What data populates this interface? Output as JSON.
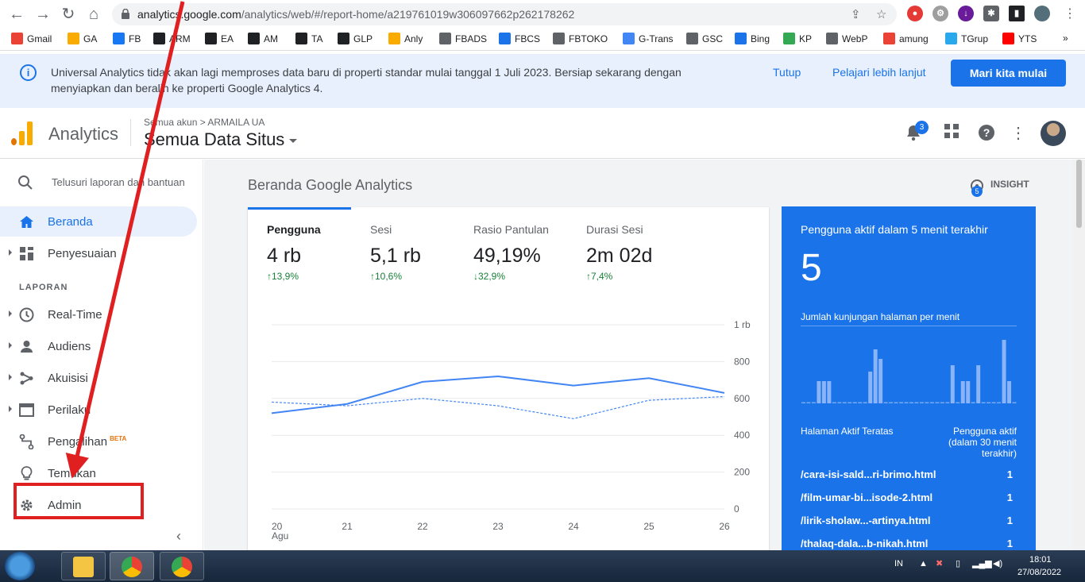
{
  "browser": {
    "url_host": "analytics.google.com",
    "url_path": "/analytics/web/#/report-home/a219761019w306097662p262178262",
    "bookmarks": [
      {
        "label": "Gmail",
        "color": "#ea4335"
      },
      {
        "label": "GA",
        "color": "#f9ab00"
      },
      {
        "label": "FB",
        "color": "#1877f2"
      },
      {
        "label": "ARM",
        "color": "#202124"
      },
      {
        "label": "EA",
        "color": "#202124"
      },
      {
        "label": "AM",
        "color": "#202124"
      },
      {
        "label": "TA",
        "color": "#202124"
      },
      {
        "label": "GLP",
        "color": "#202124"
      },
      {
        "label": "Anly",
        "color": "#f9ab00"
      },
      {
        "label": "FBADS",
        "color": "#5f6368"
      },
      {
        "label": "FBCS",
        "color": "#1a73e8"
      },
      {
        "label": "FBTOKO",
        "color": "#5f6368"
      },
      {
        "label": "G-Trans",
        "color": "#4285f4"
      },
      {
        "label": "GSC",
        "color": "#5f6368"
      },
      {
        "label": "Bing",
        "color": "#1a73e8"
      },
      {
        "label": "KP",
        "color": "#34a853"
      },
      {
        "label": "WebP",
        "color": "#5f6368"
      },
      {
        "label": "amung",
        "color": "#ea4335"
      },
      {
        "label": "TGrup",
        "color": "#29a9eb"
      },
      {
        "label": "YTS",
        "color": "#ff0000"
      }
    ],
    "more": "»"
  },
  "banner": {
    "text": "Universal Analytics tidak akan lagi memproses data baru di properti standar mulai tanggal 1 Juli 2023. Bersiap sekarang dengan menyiapkan dan beralih ke properti Google Analytics 4.",
    "close_label": "Tutup",
    "learn_label": "Pelajari lebih lanjut",
    "start_label": "Mari kita mulai"
  },
  "header": {
    "app_name": "Analytics",
    "crumb": "Semua akun > ARMAILA UA",
    "view": "Semua Data Situs",
    "notifications": "3"
  },
  "sidebar": {
    "search_placeholder": "Telusuri laporan dan bantuan",
    "home": "Beranda",
    "customization": "Penyesuaian",
    "section": "LAPORAN",
    "realtime": "Real-Time",
    "audience": "Audiens",
    "acquisition": "Akuisisi",
    "behavior": "Perilaku",
    "conversions": "Pengalihan",
    "conversions_badge": "BETA",
    "discover": "Temukan",
    "admin": "Admin"
  },
  "main": {
    "title": "Beranda Google Analytics",
    "insight_label": "INSIGHT",
    "insight_count": "5",
    "metrics": [
      {
        "label": "Pengguna",
        "value": "4 rb",
        "delta": "13,9%",
        "dir": "up"
      },
      {
        "label": "Sesi",
        "value": "5,1 rb",
        "delta": "10,6%",
        "dir": "up"
      },
      {
        "label": "Rasio Pantulan",
        "value": "49,19%",
        "delta": "32,9%",
        "dir": "down"
      },
      {
        "label": "Durasi Sesi",
        "value": "2m 02d",
        "delta": "7,4%",
        "dir": "up"
      }
    ]
  },
  "chart_data": {
    "type": "line",
    "x": [
      "20",
      "21",
      "22",
      "23",
      "24",
      "25",
      "26"
    ],
    "x_sub": "Agu",
    "y_ticks": [
      "0",
      "200",
      "400",
      "600",
      "800",
      "1 rb"
    ],
    "ylim": [
      0,
      1000
    ],
    "series": [
      {
        "values": [
          520,
          570,
          690,
          720,
          670,
          710,
          630
        ]
      },
      {
        "values": [
          580,
          560,
          600,
          560,
          490,
          590,
          610
        ]
      }
    ]
  },
  "realtime": {
    "title": "Pengguna aktif dalam 5 menit terakhir",
    "count": "5",
    "subtitle": "Jumlah kunjungan halaman per menit",
    "bars": [
      0,
      0,
      0,
      0.35,
      0.35,
      0.35,
      0,
      0,
      0,
      0,
      0,
      0,
      0,
      0.5,
      0.85,
      0.7,
      0,
      0,
      0,
      0,
      0,
      0,
      0,
      0,
      0,
      0,
      0,
      0,
      0,
      0.6,
      0,
      0.35,
      0.35,
      0,
      0.6,
      0,
      0,
      0,
      0,
      1,
      0.35,
      0
    ],
    "head_left": "Halaman Aktif Teratas",
    "head_right": "Pengguna aktif (dalam 30 menit terakhir)",
    "pages": [
      {
        "path": "/cara-isi-sald...ri-brimo.html",
        "users": "1"
      },
      {
        "path": "/film-umar-bi...isode-2.html",
        "users": "1"
      },
      {
        "path": "/lirik-sholaw...-artinya.html",
        "users": "1"
      },
      {
        "path": "/thalaq-dala...b-nikah.html",
        "users": "1"
      }
    ]
  },
  "taskbar": {
    "lang": "IN",
    "time": "18:01",
    "date": "27/08/2022"
  }
}
